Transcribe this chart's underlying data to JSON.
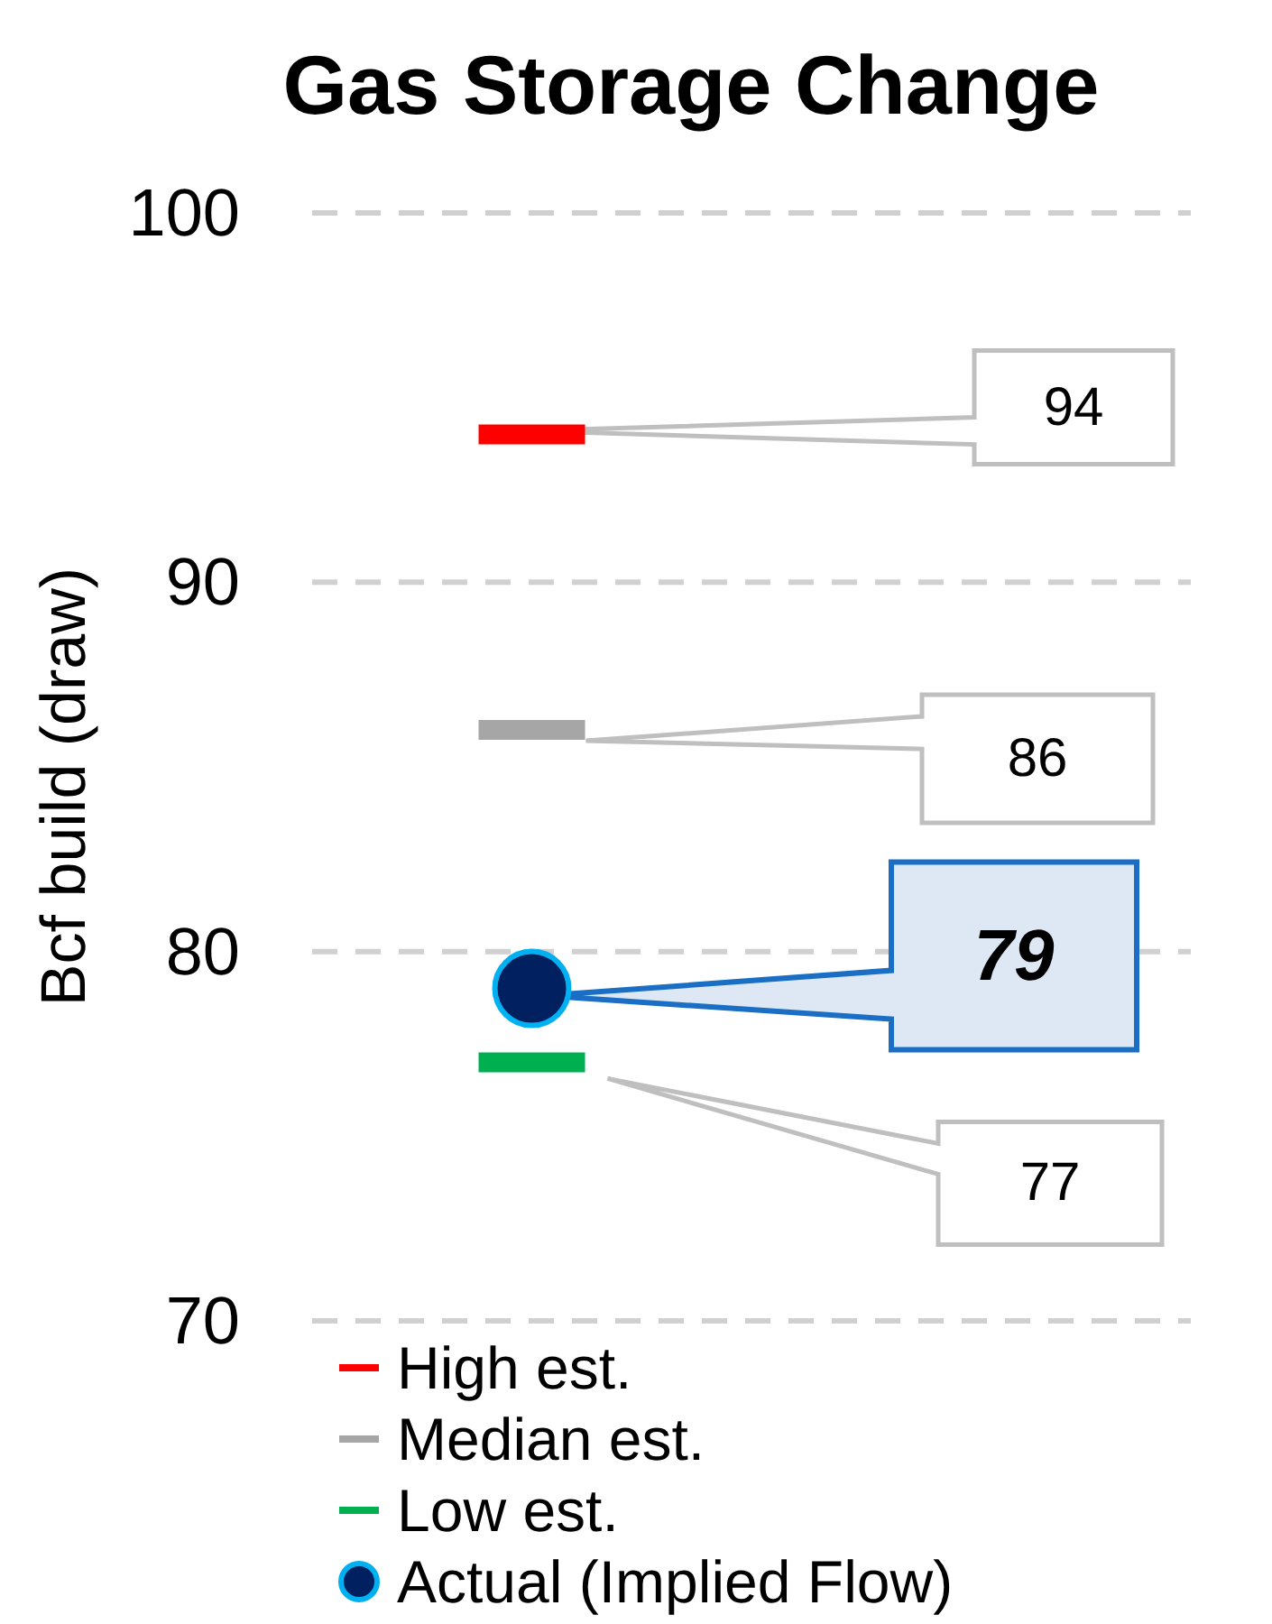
{
  "chart_data": {
    "type": "scatter",
    "title": "Gas Storage Change",
    "ylabel": "Bcf build (draw)",
    "categories": [
      null,
      null
    ],
    "series": [
      {
        "name": "Actual (Implied Flow)",
        "marker": "circle",
        "color": "#002060",
        "values": [
          79,
          null
        ]
      }
    ],
    "ref_lines": [
      {
        "axis": "y",
        "value": 94,
        "label": "High est.",
        "color": "#ff0000"
      },
      {
        "axis": "y",
        "value": 86,
        "label": "Median est.",
        "color": "#a6a6a6"
      },
      {
        "axis": "y",
        "value": 77,
        "label": "Low est.",
        "color": "#00b050"
      }
    ],
    "ylim": [
      70,
      100
    ],
    "yticks": [
      70,
      80,
      90,
      100
    ],
    "grid": "y",
    "legend": "bottom",
    "annotations": [
      "94",
      "86",
      "79",
      "77"
    ]
  }
}
